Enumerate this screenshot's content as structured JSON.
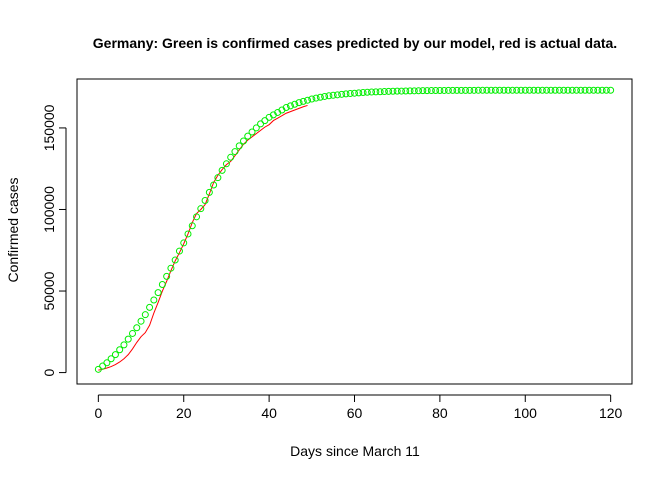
{
  "chart_data": {
    "type": "scatter",
    "title": "Germany: Green is confirmed cases predicted by our model, red is actual data.",
    "xlabel": "Days since March 11",
    "ylabel": "Confirmed cases",
    "xlim": [
      -5,
      125
    ],
    "ylim": [
      -7000,
      180000
    ],
    "x_ticks": [
      0,
      20,
      40,
      60,
      80,
      100,
      120
    ],
    "y_ticks": [
      0,
      50000,
      100000,
      150000
    ],
    "x_tick_labels": [
      "0",
      "20",
      "40",
      "60",
      "80",
      "100",
      "120"
    ],
    "y_tick_labels": [
      "0",
      "50000",
      "100000",
      "150000"
    ],
    "grid": false,
    "legend": "none",
    "series": [
      {
        "color": "#00ee00",
        "marker": "open-circle",
        "x": [
          0,
          1,
          2,
          3,
          4,
          5,
          6,
          7,
          8,
          9,
          10,
          11,
          12,
          13,
          14,
          15,
          16,
          17,
          18,
          19,
          20,
          21,
          22,
          23,
          24,
          25,
          26,
          27,
          28,
          29,
          30,
          31,
          32,
          33,
          34,
          35,
          36,
          37,
          38,
          39,
          40,
          41,
          42,
          43,
          44,
          45,
          46,
          47,
          48,
          49,
          50,
          51,
          52,
          53,
          54,
          55,
          56,
          57,
          58,
          59,
          60,
          61,
          62,
          63,
          64,
          65,
          66,
          67,
          68,
          69,
          70,
          71,
          72,
          73,
          74,
          75,
          76,
          77,
          78,
          79,
          80,
          81,
          82,
          83,
          84,
          85,
          86,
          87,
          88,
          89,
          90,
          91,
          92,
          93,
          94,
          95,
          96,
          97,
          98,
          99,
          100,
          101,
          102,
          103,
          104,
          105,
          106,
          107,
          108,
          109,
          110,
          111,
          112,
          113,
          114,
          115,
          116,
          117,
          118,
          119,
          120
        ],
        "y": [
          2000,
          4000,
          6000,
          8500,
          11000,
          14000,
          17000,
          20500,
          24000,
          27500,
          31500,
          35500,
          40000,
          44500,
          49000,
          54000,
          59000,
          64000,
          69000,
          74500,
          79500,
          85000,
          90000,
          95500,
          100500,
          105500,
          110500,
          115000,
          119500,
          124000,
          128000,
          132000,
          135500,
          139000,
          142000,
          145000,
          147500,
          150000,
          152500,
          154500,
          156500,
          158000,
          159500,
          161000,
          162500,
          163500,
          164500,
          165500,
          166300,
          167000,
          167700,
          168300,
          168800,
          169300,
          169700,
          170000,
          170300,
          170600,
          170900,
          171100,
          171300,
          171500,
          171700,
          171850,
          172000,
          172100,
          172200,
          172300,
          172400,
          172500,
          172550,
          172600,
          172650,
          172700,
          172750,
          172800,
          172850,
          172880,
          172910,
          172940,
          172960,
          172980,
          173000,
          173010,
          173020,
          173030,
          173040,
          173050,
          173060,
          173070,
          173080,
          173085,
          173090,
          173095,
          173100,
          173100,
          173100,
          173100,
          173100,
          173100,
          173100,
          173100,
          173100,
          173100,
          173100,
          173100,
          173100,
          173100,
          173100,
          173100,
          173100,
          173100,
          173100,
          173100,
          173100,
          173100,
          173100,
          173100,
          173100,
          173100,
          173100
        ]
      },
      {
        "color": "#ff0000",
        "marker": "line",
        "x": [
          0,
          1,
          2,
          3,
          4,
          5,
          6,
          7,
          8,
          9,
          10,
          11,
          12,
          13,
          14,
          15,
          16,
          17,
          18,
          19,
          20,
          21,
          22,
          23,
          24,
          25,
          26,
          27,
          28,
          29,
          30,
          31,
          32,
          33,
          34,
          35,
          36,
          37,
          38,
          39,
          40,
          41,
          42,
          43,
          44,
          45,
          46,
          47,
          48,
          49
        ],
        "y": [
          1500,
          2000,
          2800,
          3700,
          4900,
          6500,
          8500,
          11000,
          14500,
          18500,
          22000,
          24500,
          29000,
          36500,
          43000,
          50000,
          56000,
          62500,
          68500,
          73500,
          79000,
          85000,
          92000,
          97500,
          100000,
          103000,
          109500,
          116500,
          121000,
          124500,
          127500,
          129500,
          133000,
          136500,
          140000,
          142500,
          144500,
          146500,
          148500,
          150500,
          152000,
          154500,
          156000,
          157500,
          159000,
          160000,
          161000,
          162000,
          163000,
          163800
        ]
      }
    ]
  }
}
